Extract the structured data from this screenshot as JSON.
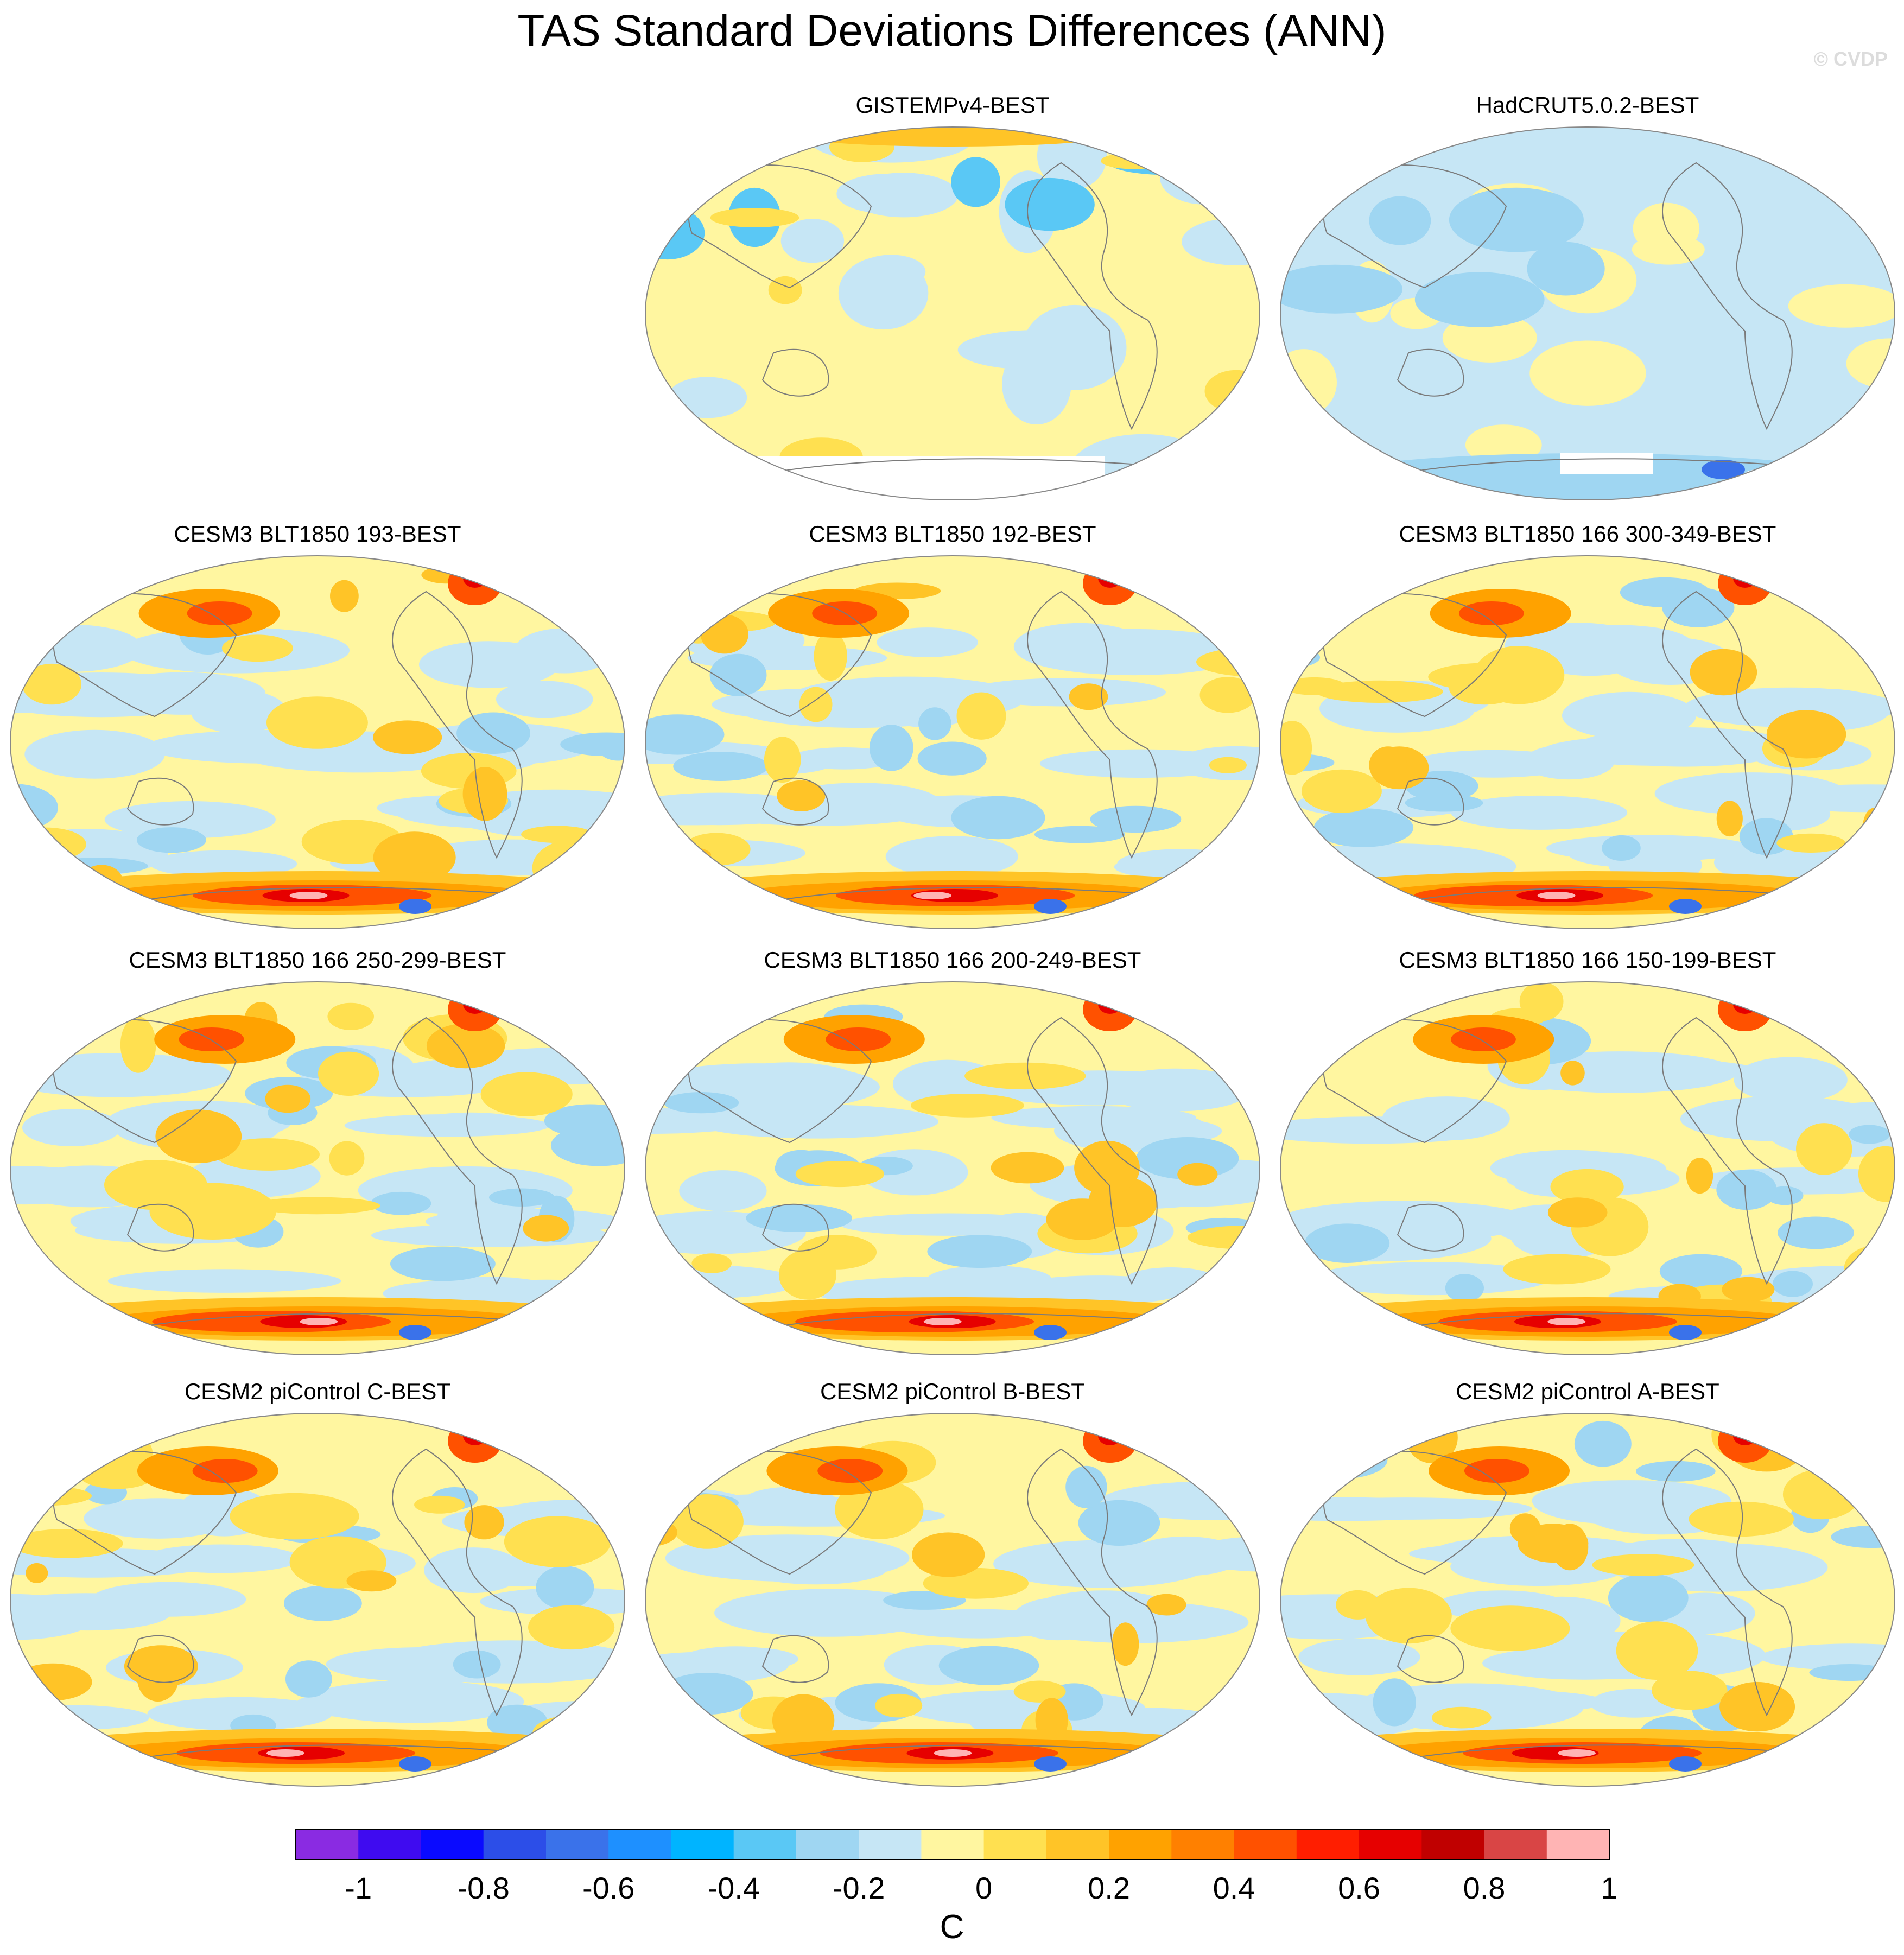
{
  "title": "TAS Standard Deviations Differences (ANN)",
  "credit": "© CVDP",
  "panels": [
    {
      "label": "GISTEMPv4-BEST",
      "row": 0,
      "col": 1,
      "style": "obs"
    },
    {
      "label": "HadCRUT5.0.2-BEST",
      "row": 0,
      "col": 2,
      "style": "had"
    },
    {
      "label": "CESM3 BLT1850 193-BEST",
      "row": 1,
      "col": 0,
      "style": "model"
    },
    {
      "label": "CESM3 BLT1850 192-BEST",
      "row": 1,
      "col": 1,
      "style": "model"
    },
    {
      "label": "CESM3 BLT1850 166 300-349-BEST",
      "row": 1,
      "col": 2,
      "style": "model"
    },
    {
      "label": "CESM3 BLT1850 166 250-299-BEST",
      "row": 2,
      "col": 0,
      "style": "model"
    },
    {
      "label": "CESM3 BLT1850 166 200-249-BEST",
      "row": 2,
      "col": 1,
      "style": "model"
    },
    {
      "label": "CESM3 BLT1850 166 150-199-BEST",
      "row": 2,
      "col": 2,
      "style": "model"
    },
    {
      "label": "CESM2 piControl C-BEST",
      "row": 3,
      "col": 0,
      "style": "model"
    },
    {
      "label": "CESM2 piControl B-BEST",
      "row": 3,
      "col": 1,
      "style": "model"
    },
    {
      "label": "CESM2 piControl A-BEST",
      "row": 3,
      "col": 2,
      "style": "model"
    }
  ],
  "colorbar": {
    "colors": [
      "#8a2be2",
      "#3f0bf0",
      "#0a0aff",
      "#2c4ee8",
      "#3a72ea",
      "#1e90ff",
      "#00b4ff",
      "#5ac8f5",
      "#9fd6f2",
      "#c6e6f5",
      "#fff6a0",
      "#ffe050",
      "#ffc427",
      "#ffa200",
      "#ff8000",
      "#ff5100",
      "#ff1e00",
      "#e60000",
      "#c00000",
      "#d94545",
      "#ffb4b4"
    ],
    "tick_labels": [
      "-1",
      "-0.8",
      "-0.6",
      "-0.4",
      "-0.2",
      "0",
      "0.2",
      "0.4",
      "0.6",
      "0.8",
      "1"
    ],
    "units": "C"
  }
}
